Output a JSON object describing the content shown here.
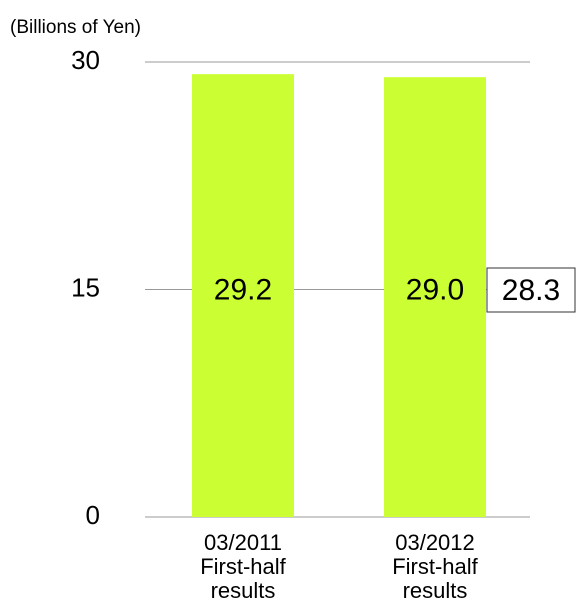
{
  "chart_data": {
    "type": "bar",
    "y_axis_label": "(Billions of Yen)",
    "categories": [
      "03/2011 First-half results",
      "03/2012 First-half results"
    ],
    "values": [
      29.2,
      29.0
    ],
    "value_labels": [
      "29.2",
      "29.0"
    ],
    "color": "#ccff33",
    "ylim": [
      0,
      30
    ],
    "yticks": [
      0,
      15,
      30
    ],
    "grid": true,
    "annotations": [
      "28.3"
    ]
  }
}
